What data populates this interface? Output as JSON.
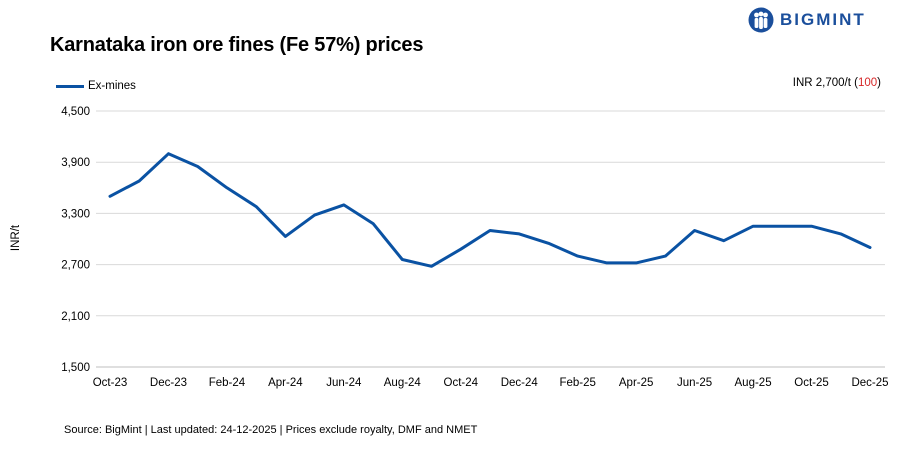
{
  "brand": {
    "logo_text": "BIGMINT",
    "logo_icon": "people-mark-icon",
    "color": "#1b4f9c"
  },
  "chart_data": {
    "type": "line",
    "title": "Karnataka iron ore fines (Fe 57%) prices",
    "ylabel": "INR/t",
    "xlabel": "",
    "ylim": [
      1500,
      4500
    ],
    "yticks": [
      1500,
      2100,
      2700,
      3300,
      3900,
      4500
    ],
    "ytick_labels": [
      "1,500",
      "2,100",
      "2,700",
      "3,300",
      "3,900",
      "4,500"
    ],
    "grid": "horizontal",
    "legend_position": "top-left",
    "categories": [
      "Oct-23",
      "Nov-23",
      "Dec-23",
      "Jan-24",
      "Feb-24",
      "Mar-24",
      "Apr-24",
      "May-24",
      "Jun-24",
      "Jul-24",
      "Aug-24",
      "Sep-24",
      "Oct-24",
      "Nov-24",
      "Dec-24",
      "Jan-25",
      "Feb-25",
      "Mar-25",
      "Apr-25",
      "May-25",
      "Jun-25",
      "Jul-25",
      "Aug-25",
      "Sep-25",
      "Oct-25",
      "Nov-25",
      "Dec-25"
    ],
    "xtick_labels": [
      "Oct-23",
      "Dec-23",
      "Feb-24",
      "Apr-24",
      "Jun-24",
      "Aug-24",
      "Oct-24",
      "Dec-24",
      "Feb-25",
      "Apr-25",
      "Jun-25",
      "Aug-25",
      "Oct-25",
      "Dec-25"
    ],
    "series": [
      {
        "name": "Ex-mines",
        "color": "#0a52a3",
        "values": [
          3500,
          3680,
          4000,
          3850,
          3600,
          3380,
          3030,
          3280,
          3400,
          3180,
          2760,
          2680,
          2880,
          3100,
          3060,
          2950,
          2800,
          2720,
          2720,
          2800,
          3100,
          2980,
          3150,
          3150,
          3150,
          3060,
          2900
        ]
      }
    ],
    "annotation": {
      "prefix": "INR 2,700/t (",
      "change": "100",
      "suffix": ")",
      "change_color": "#d62728"
    }
  },
  "source_note": "Source: BigMint | Last updated: 24-12-2025 | Prices exclude royalty, DMF and NMET"
}
